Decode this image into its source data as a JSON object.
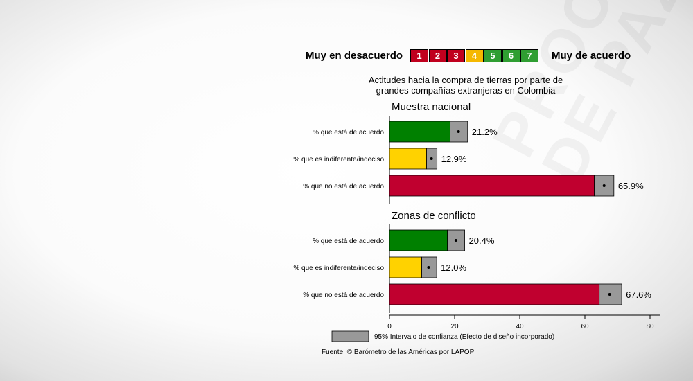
{
  "scale": {
    "left_label": "Muy en desacuerdo",
    "right_label": "Muy de acuerdo",
    "cells": [
      {
        "n": "1",
        "color": "#c0001e"
      },
      {
        "n": "2",
        "color": "#c0001e"
      },
      {
        "n": "3",
        "color": "#c0001e"
      },
      {
        "n": "4",
        "color": "#f5b800"
      },
      {
        "n": "5",
        "color": "#2f9e32"
      },
      {
        "n": "6",
        "color": "#2f9e32"
      },
      {
        "n": "7",
        "color": "#2f9e32"
      }
    ]
  },
  "chart_data": {
    "type": "bar",
    "title": "Actitudes hacia la compra de tierras por parte de grandes compañías extranjeras en Colombia",
    "title_lines": [
      "Actitudes hacia la compra de tierras por parte de",
      "grandes compañías extranjeras en Colombia"
    ],
    "xlim": [
      0,
      82
    ],
    "xticks": [
      0,
      20,
      40,
      60,
      80
    ],
    "grid": false,
    "panels": [
      {
        "name": "Muestra nacional",
        "bars": [
          {
            "label": "% que está de acuerdo",
            "value": 21.2,
            "ci_low": 18.6,
            "ci_high": 24.0,
            "value_label": "21.2%",
            "color": "#008000"
          },
          {
            "label": "% que es indiferente/indeciso",
            "value": 12.9,
            "ci_low": 11.4,
            "ci_high": 14.6,
            "value_label": "12.9%",
            "color": "#ffd200"
          },
          {
            "label": "% que no está de acuerdo",
            "value": 65.9,
            "ci_low": 62.9,
            "ci_high": 68.9,
            "value_label": "65.9%",
            "color": "#c0002f"
          }
        ]
      },
      {
        "name": "Zonas de conflicto",
        "bars": [
          {
            "label": "% que está de acuerdo",
            "value": 20.4,
            "ci_low": 17.8,
            "ci_high": 23.1,
            "value_label": "20.4%",
            "color": "#008000"
          },
          {
            "label": "% que es indiferente/indeciso",
            "value": 12.0,
            "ci_low": 9.9,
            "ci_high": 14.5,
            "value_label": "12.0%",
            "color": "#ffd200"
          },
          {
            "label": "% que no está de acuerdo",
            "value": 67.6,
            "ci_low": 64.4,
            "ci_high": 71.3,
            "value_label": "67.6%",
            "color": "#c0002f"
          }
        ]
      }
    ],
    "legend": "95% Intervalo de confianza (Efecto de diseño incorporado)",
    "legend_color": "#999999",
    "source": "Fuente: © Barómetro de las Américas por LAPOP"
  },
  "watermark": "PROCESO\nDE PAZ"
}
